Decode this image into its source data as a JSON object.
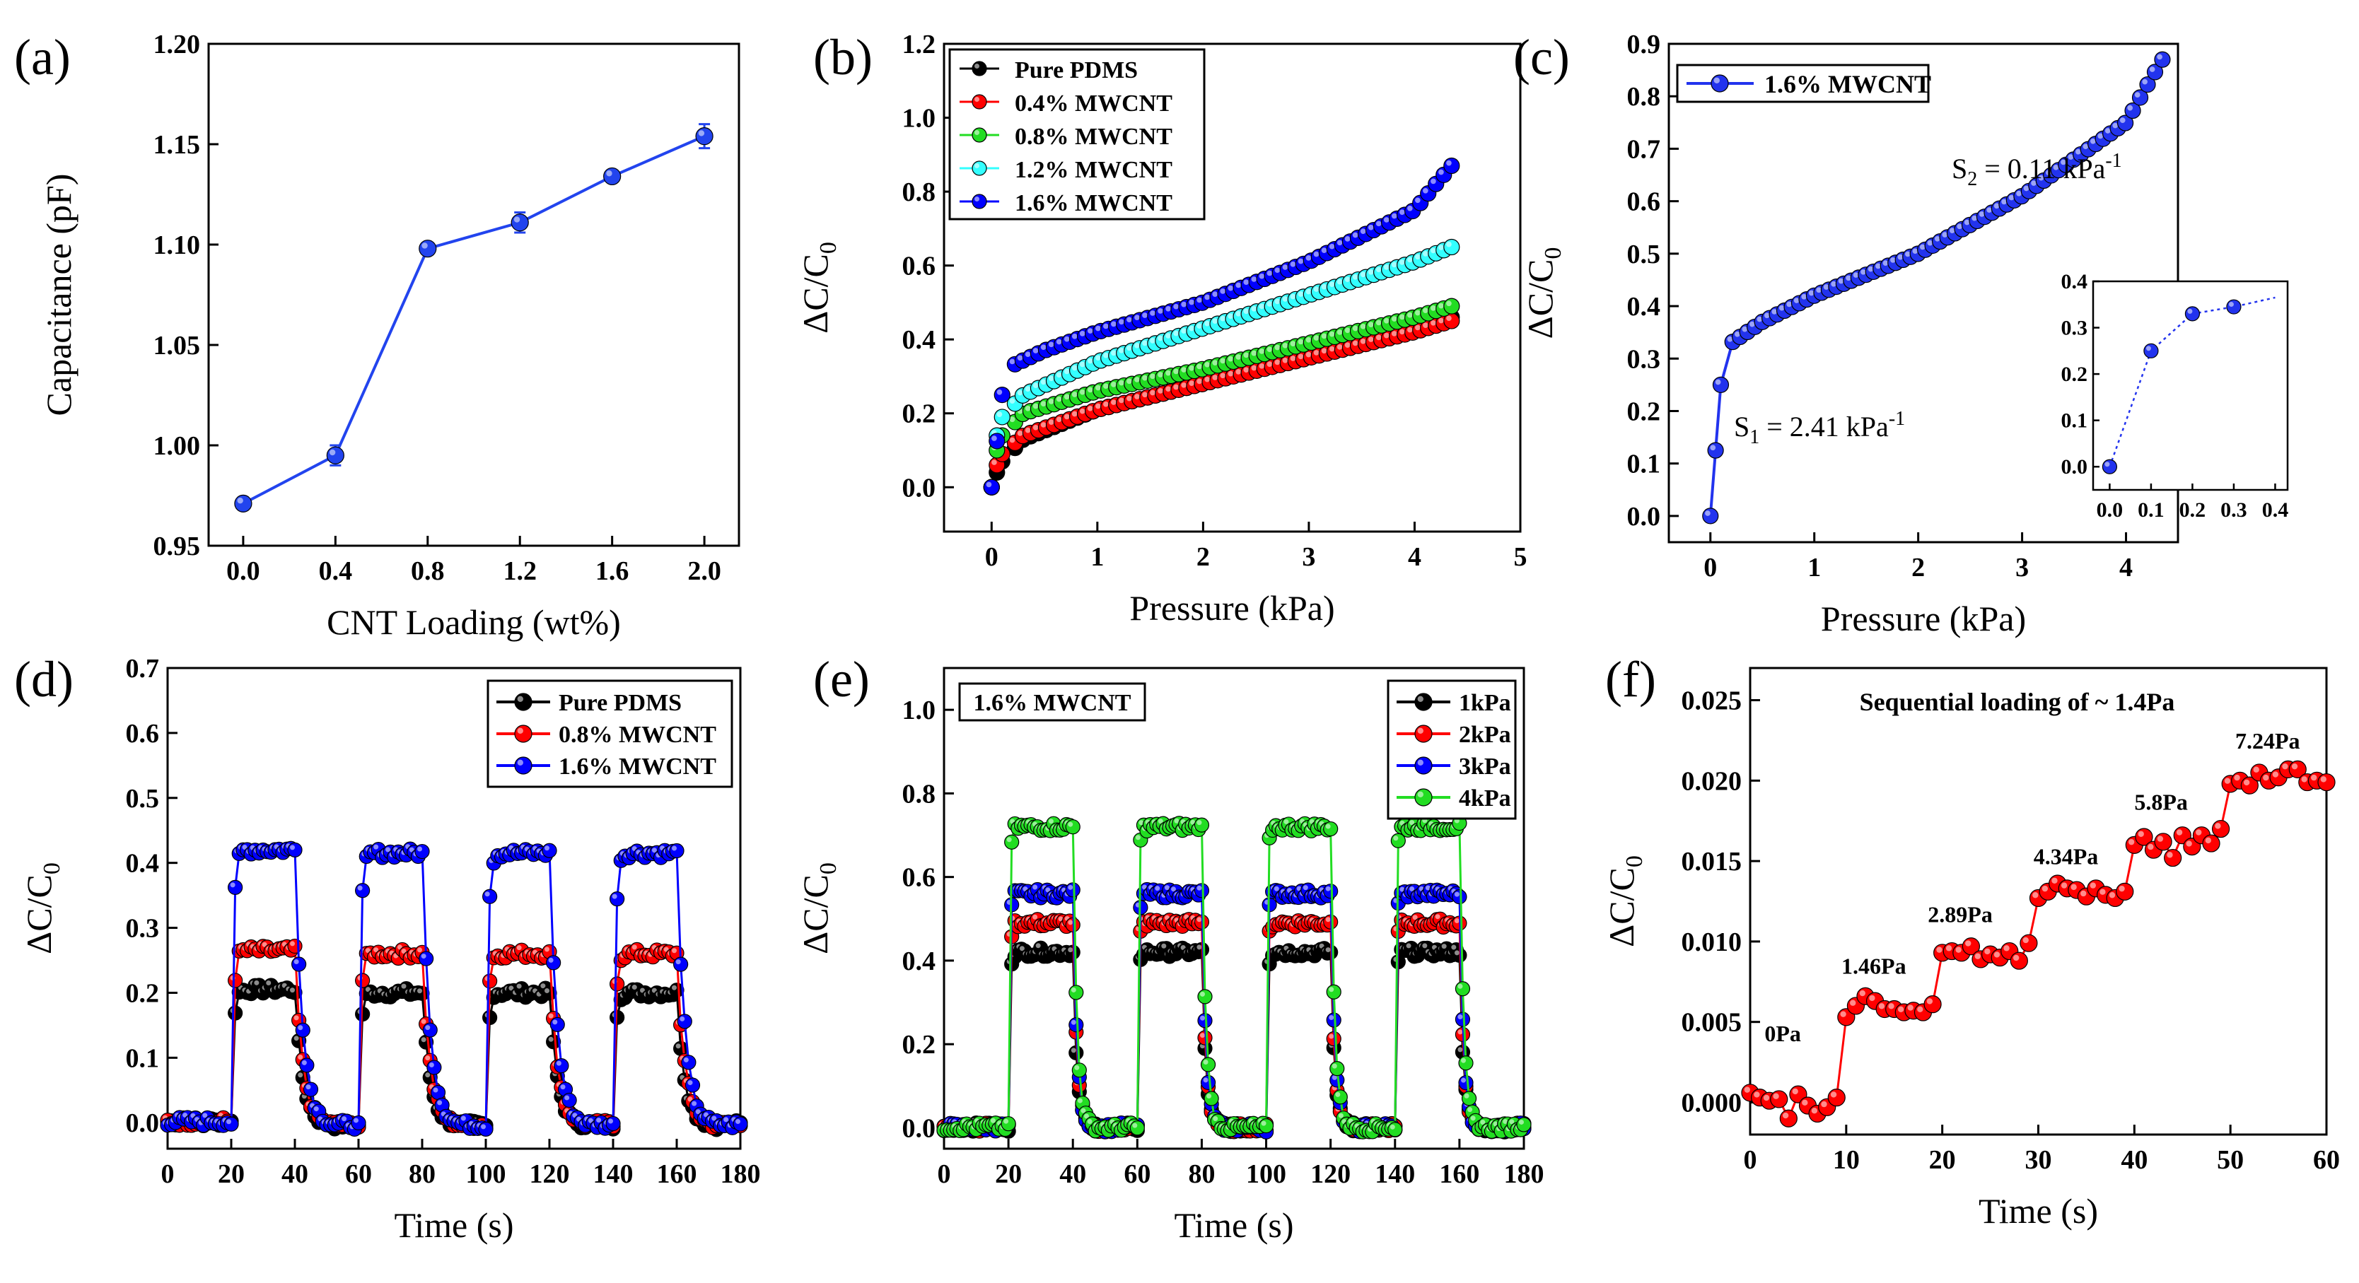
{
  "figure": {
    "colors": {
      "black": "#000000",
      "red": "#ff0000",
      "green": "#22dd22",
      "cyan": "#33ffff",
      "blue": "#0000ff"
    }
  },
  "chart_data": [
    {
      "panel_label": "(a)",
      "type": "line",
      "xlabel": "CNT Loading (wt%)",
      "ylabel": "Capacitance (pF)",
      "xlim": [
        -0.15,
        2.15
      ],
      "ylim": [
        0.95,
        1.2
      ],
      "xticks": [
        "0.0",
        "0.4",
        "0.8",
        "1.2",
        "1.6",
        "2.0"
      ],
      "xtick_values": [
        0,
        0.4,
        0.8,
        1.2,
        1.6,
        2.0
      ],
      "yticks": [
        "0.95",
        "1.00",
        "1.05",
        "1.10",
        "1.15",
        "1.20"
      ],
      "ytick_values": [
        0.95,
        1.0,
        1.05,
        1.1,
        1.15,
        1.2
      ],
      "legend": null,
      "series": [
        {
          "name": "Capacitance",
          "color": "#2244ee",
          "line": "solid",
          "markers": true,
          "x": [
            0,
            0.4,
            0.8,
            1.2,
            1.6,
            2.0
          ],
          "y": [
            0.971,
            0.995,
            1.098,
            1.111,
            1.134,
            1.154
          ],
          "err": [
            0.003,
            0.005,
            0.002,
            0.005,
            0.002,
            0.006
          ]
        }
      ]
    },
    {
      "panel_label": "(b)",
      "type": "scatter",
      "xlabel": "Pressure (kPa)",
      "ylabel": "ΔC/C",
      "ylabel_sub": "0",
      "xlim": [
        -0.45,
        5.0
      ],
      "ylim": [
        -0.12,
        1.2
      ],
      "xticks": [
        "0",
        "1",
        "2",
        "3",
        "4",
        "5"
      ],
      "xtick_values": [
        0,
        1,
        2,
        3,
        4,
        5
      ],
      "yticks": [
        "0.0",
        "0.2",
        "0.4",
        "0.6",
        "0.8",
        "1.0",
        "1.2"
      ],
      "ytick_values": [
        0,
        0.2,
        0.4,
        0.6,
        0.8,
        1.0,
        1.2
      ],
      "legend": [
        "Pure PDMS",
        "0.4% MWCNT",
        "0.8% MWCNT",
        "1.2% MWCNT",
        "1.6% MWCNT"
      ],
      "series": [
        {
          "name": "Pure PDMS",
          "color": "#000000",
          "n": 60,
          "x0": 0,
          "x1": 4.35,
          "points": [
            [
              0,
              0
            ],
            [
              0.05,
              0.04
            ],
            [
              0.1,
              0.07
            ],
            [
              0.3,
              0.13
            ],
            [
              1,
              0.21
            ],
            [
              2,
              0.28
            ],
            [
              3,
              0.36
            ],
            [
              4,
              0.43
            ],
            [
              4.35,
              0.46
            ]
          ]
        },
        {
          "name": "0.4% MWCNT",
          "color": "#ff0000",
          "n": 60,
          "x0": 0,
          "x1": 4.35,
          "points": [
            [
              0,
              0
            ],
            [
              0.05,
              0.06
            ],
            [
              0.1,
              0.09
            ],
            [
              0.3,
              0.14
            ],
            [
              1,
              0.21
            ],
            [
              2,
              0.28
            ],
            [
              3,
              0.35
            ],
            [
              4,
              0.42
            ],
            [
              4.35,
              0.45
            ]
          ]
        },
        {
          "name": "0.8% MWCNT",
          "color": "#22dd22",
          "n": 60,
          "x0": 0,
          "x1": 4.35,
          "points": [
            [
              0,
              0
            ],
            [
              0.05,
              0.1
            ],
            [
              0.1,
              0.14
            ],
            [
              0.3,
              0.2
            ],
            [
              1,
              0.26
            ],
            [
              2,
              0.32
            ],
            [
              3,
              0.39
            ],
            [
              4,
              0.46
            ],
            [
              4.35,
              0.49
            ]
          ]
        },
        {
          "name": "1.2% MWCNT",
          "color": "#33ffff",
          "n": 60,
          "x0": 0,
          "x1": 4.35,
          "points": [
            [
              0,
              0
            ],
            [
              0.05,
              0.14
            ],
            [
              0.1,
              0.19
            ],
            [
              0.3,
              0.25
            ],
            [
              1,
              0.34
            ],
            [
              2,
              0.43
            ],
            [
              3,
              0.52
            ],
            [
              4,
              0.61
            ],
            [
              4.35,
              0.65
            ]
          ]
        },
        {
          "name": "1.6% MWCNT",
          "color": "#0000ff",
          "n": 60,
          "x0": 0,
          "x1": 4.35,
          "points": [
            [
              0,
              0
            ],
            [
              0.1,
              0.25
            ],
            [
              0.2,
              0.33
            ],
            [
              0.5,
              0.37
            ],
            [
              1,
              0.42
            ],
            [
              2,
              0.5
            ],
            [
              3,
              0.61
            ],
            [
              4,
              0.75
            ],
            [
              4.2,
              0.82
            ],
            [
              4.35,
              0.87
            ]
          ]
        }
      ]
    },
    {
      "panel_label": "(c)",
      "type": "line",
      "xlabel": "Pressure (kPa)",
      "ylabel": "ΔC/C",
      "ylabel_sub": "0",
      "xlim": [
        -0.4,
        4.5
      ],
      "ylim": [
        -0.05,
        0.9
      ],
      "xticks": [
        "0",
        "1",
        "2",
        "3",
        "4"
      ],
      "xtick_values": [
        0,
        1,
        2,
        3,
        4
      ],
      "yticks": [
        "0.0",
        "0.1",
        "0.2",
        "0.3",
        "0.4",
        "0.5",
        "0.6",
        "0.7",
        "0.8",
        "0.9"
      ],
      "ytick_values": [
        0,
        0.1,
        0.2,
        0.3,
        0.4,
        0.5,
        0.6,
        0.7,
        0.8,
        0.9
      ],
      "legend": [
        "1.6% MWCNT"
      ],
      "annotations": [
        {
          "text": "S",
          "sub": "2",
          "rest": " = 0.11 kPa",
          "sup": "-1"
        },
        {
          "text": "S",
          "sub": "1",
          "rest": " = 2.41 kPa",
          "sup": "-1"
        }
      ],
      "series": [
        {
          "name": "1.6% MWCNT",
          "color": "#2233ee",
          "n": 62,
          "x0": 0,
          "x1": 4.35,
          "points": [
            [
              0,
              0
            ],
            [
              0.1,
              0.25
            ],
            [
              0.2,
              0.33
            ],
            [
              0.5,
              0.37
            ],
            [
              1,
              0.42
            ],
            [
              2,
              0.5
            ],
            [
              3,
              0.61
            ],
            [
              4,
              0.75
            ],
            [
              4.2,
              0.82
            ],
            [
              4.35,
              0.87
            ]
          ]
        }
      ],
      "inset": {
        "xlim": [
          -0.04,
          0.43
        ],
        "ylim": [
          -0.05,
          0.4
        ],
        "xticks": [
          "0.0",
          "0.1",
          "0.2",
          "0.3",
          "0.4"
        ],
        "xtick_values": [
          0,
          0.1,
          0.2,
          0.3,
          0.4
        ],
        "yticks": [
          "0.0",
          "0.1",
          "0.2",
          "0.3",
          "0.4"
        ],
        "ytick_values": [
          0,
          0.1,
          0.2,
          0.3,
          0.4
        ],
        "x": [
          0,
          0.1,
          0.2,
          0.3,
          0.4
        ],
        "y": [
          0,
          0.25,
          0.33,
          0.345,
          0.365
        ]
      }
    },
    {
      "panel_label": "(d)",
      "type": "scatter",
      "xlabel": "Time (s)",
      "ylabel": "ΔC/C",
      "ylabel_sub": "0",
      "xlim": [
        0,
        180
      ],
      "ylim": [
        -0.04,
        0.7
      ],
      "xticks": [
        "0",
        "20",
        "40",
        "60",
        "80",
        "100",
        "120",
        "140",
        "160",
        "180"
      ],
      "xtick_values": [
        0,
        20,
        40,
        60,
        80,
        100,
        120,
        140,
        160,
        180
      ],
      "yticks": [
        "0.0",
        "0.1",
        "0.2",
        "0.3",
        "0.4",
        "0.5",
        "0.6",
        "0.7"
      ],
      "ytick_values": [
        0,
        0.1,
        0.2,
        0.3,
        0.4,
        0.5,
        0.6,
        0.7
      ],
      "legend": [
        "Pure PDMS",
        "0.8% MWCNT",
        "1.6% MWCNT"
      ],
      "cycles": {
        "on": [
          20,
          60,
          100,
          140
        ],
        "duration": 20,
        "rise": 2,
        "decay": 4
      },
      "series": [
        {
          "name": "Pure PDMS",
          "color": "#000000",
          "plateau": 0.205
        },
        {
          "name": "0.8% MWCNT",
          "color": "#ff0000",
          "plateau": 0.265
        },
        {
          "name": "1.6% MWCNT",
          "color": "#0000ff",
          "plateau": 0.42
        }
      ]
    },
    {
      "panel_label": "(e)",
      "type": "scatter",
      "xlabel": "Time (s)",
      "ylabel": "ΔC/C",
      "ylabel_sub": "0",
      "xlim": [
        0,
        180
      ],
      "ylim": [
        -0.05,
        1.1
      ],
      "xticks": [
        "0",
        "20",
        "40",
        "60",
        "80",
        "100",
        "120",
        "140",
        "160",
        "180"
      ],
      "xtick_values": [
        0,
        20,
        40,
        60,
        80,
        100,
        120,
        140,
        160,
        180
      ],
      "yticks": [
        "0.0",
        "0.2",
        "0.4",
        "0.6",
        "0.8",
        "1.0"
      ],
      "ytick_values": [
        0,
        0.2,
        0.4,
        0.6,
        0.8,
        1.0
      ],
      "label_box": "1.6% MWCNT",
      "legend": [
        "1kPa",
        "2kPa",
        "3kPa",
        "4kPa"
      ],
      "cycles": {
        "on": [
          20,
          60,
          100,
          140
        ],
        "duration": 20,
        "rise": 1,
        "decay": 2
      },
      "series": [
        {
          "name": "1kPa",
          "color": "#000000",
          "plateau": 0.42
        },
        {
          "name": "2kPa",
          "color": "#ff0000",
          "plateau": 0.49
        },
        {
          "name": "3kPa",
          "color": "#0000ff",
          "plateau": 0.56
        },
        {
          "name": "4kPa",
          "color": "#22dd22",
          "plateau": 0.72
        }
      ]
    },
    {
      "panel_label": "(f)",
      "type": "scatter",
      "title": "Sequential loading of ~ 1.4Pa",
      "xlabel": "Time (s)",
      "ylabel": "ΔC/C",
      "ylabel_sub": "0",
      "xlim": [
        0,
        60
      ],
      "ylim": [
        -0.002,
        0.027
      ],
      "xticks": [
        "0",
        "10",
        "20",
        "30",
        "40",
        "50",
        "60"
      ],
      "xtick_values": [
        0,
        10,
        20,
        30,
        40,
        50,
        60
      ],
      "yticks": [
        "0.000",
        "0.005",
        "0.010",
        "0.015",
        "0.020",
        "0.025"
      ],
      "ytick_values": [
        0,
        0.005,
        0.01,
        0.015,
        0.02,
        0.025
      ],
      "legend": null,
      "steps": [
        {
          "label": "0Pa",
          "t0": 0,
          "t1": 9,
          "level": 0.0002
        },
        {
          "label": "1.46Pa",
          "t0": 10,
          "t1": 19,
          "level": 0.0062
        },
        {
          "label": "2.89Pa",
          "t0": 20,
          "t1": 29,
          "level": 0.0093
        },
        {
          "label": "4.34Pa",
          "t0": 30,
          "t1": 39,
          "level": 0.0131
        },
        {
          "label": "5.8Pa",
          "t0": 40,
          "t1": 49,
          "level": 0.0163
        },
        {
          "label": "7.24Pa",
          "t0": 50,
          "t1": 60,
          "level": 0.0202
        }
      ],
      "series": [
        {
          "name": "Sequential loading",
          "color": "#ff0000",
          "x": [
            0,
            1,
            2,
            3,
            4,
            5,
            6,
            7,
            8,
            9,
            10,
            11,
            12,
            13,
            14,
            15,
            16,
            17,
            18,
            19,
            20,
            21,
            22,
            23,
            24,
            25,
            26,
            27,
            28,
            29,
            30,
            31,
            32,
            33,
            34,
            35,
            36,
            37,
            38,
            39,
            40,
            41,
            42,
            43,
            44,
            45,
            46,
            47,
            48,
            49,
            50,
            51,
            52,
            53,
            54,
            55,
            56,
            57,
            58,
            59,
            60
          ],
          "y": [
            0.0006,
            0.0003,
            0.0001,
            0.0002,
            -0.001,
            0.0005,
            -0.0002,
            -0.0007,
            -0.0003,
            0.0003,
            0.0053,
            0.006,
            0.0066,
            0.0063,
            0.0058,
            0.0058,
            0.0056,
            0.0057,
            0.0056,
            0.0061,
            0.0093,
            0.0094,
            0.0093,
            0.0097,
            0.0089,
            0.0092,
            0.009,
            0.0094,
            0.0088,
            0.0099,
            0.0127,
            0.0131,
            0.0136,
            0.0133,
            0.0132,
            0.0128,
            0.0133,
            0.0129,
            0.0127,
            0.0131,
            0.016,
            0.0165,
            0.0157,
            0.0162,
            0.0152,
            0.0166,
            0.0159,
            0.0166,
            0.0161,
            0.017,
            0.0198,
            0.02,
            0.0197,
            0.0205,
            0.02,
            0.0202,
            0.0207,
            0.0207,
            0.0199,
            0.02,
            0.0199
          ]
        }
      ]
    }
  ]
}
